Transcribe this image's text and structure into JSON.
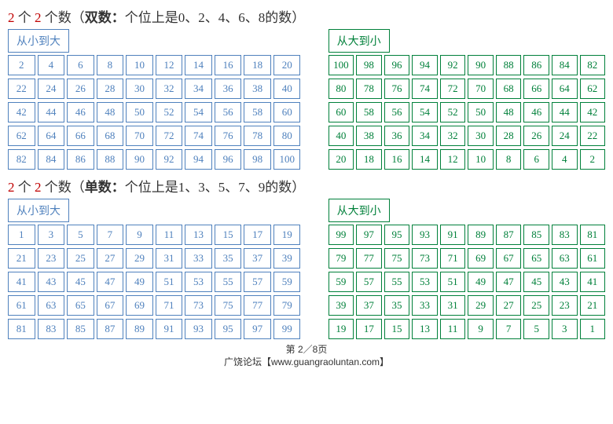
{
  "sections": [
    {
      "title": {
        "prefix_red1": "2",
        "mid1": " 个 ",
        "prefix_red2": "2",
        "mid2": " 个数（",
        "bold": "双数：",
        "rest": "个位上是0、2、4、6、8的数）"
      },
      "left": {
        "header": "从小到大",
        "border": "blue-border",
        "rows": [
          [
            2,
            4,
            6,
            8,
            10,
            12,
            14,
            16,
            18,
            20
          ],
          [
            22,
            24,
            26,
            28,
            30,
            32,
            34,
            36,
            38,
            40
          ],
          [
            42,
            44,
            46,
            48,
            50,
            52,
            54,
            56,
            58,
            60
          ],
          [
            62,
            64,
            66,
            68,
            70,
            72,
            74,
            76,
            78,
            80
          ],
          [
            82,
            84,
            86,
            88,
            90,
            92,
            94,
            96,
            98,
            100
          ]
        ]
      },
      "right": {
        "header": "从大到小",
        "border": "green-border",
        "rows": [
          [
            100,
            98,
            96,
            94,
            92,
            90,
            88,
            86,
            84,
            82
          ],
          [
            80,
            78,
            76,
            74,
            72,
            70,
            68,
            66,
            64,
            62
          ],
          [
            60,
            58,
            56,
            54,
            52,
            50,
            48,
            46,
            44,
            42
          ],
          [
            40,
            38,
            36,
            34,
            32,
            30,
            28,
            26,
            24,
            22
          ],
          [
            20,
            18,
            16,
            14,
            12,
            10,
            8,
            6,
            4,
            2
          ]
        ]
      }
    },
    {
      "title": {
        "prefix_red1": "2",
        "mid1": " 个 ",
        "prefix_red2": "2",
        "mid2": " 个数（",
        "bold": "单数：",
        "rest": "个位上是1、3、5、7、9的数）"
      },
      "left": {
        "header": "从小到大",
        "border": "blue-border",
        "rows": [
          [
            1,
            3,
            5,
            7,
            9,
            11,
            13,
            15,
            17,
            19
          ],
          [
            21,
            23,
            25,
            27,
            29,
            31,
            33,
            35,
            37,
            39
          ],
          [
            41,
            43,
            45,
            47,
            49,
            51,
            53,
            55,
            57,
            59
          ],
          [
            61,
            63,
            65,
            67,
            69,
            71,
            73,
            75,
            77,
            79
          ],
          [
            81,
            83,
            85,
            87,
            89,
            91,
            93,
            95,
            97,
            99
          ]
        ]
      },
      "right": {
        "header": "从大到小",
        "border": "green-border",
        "rows": [
          [
            99,
            97,
            95,
            93,
            91,
            89,
            87,
            85,
            83,
            81
          ],
          [
            79,
            77,
            75,
            73,
            71,
            69,
            67,
            65,
            63,
            61
          ],
          [
            59,
            57,
            55,
            53,
            51,
            49,
            47,
            45,
            43,
            41
          ],
          [
            39,
            37,
            35,
            33,
            31,
            29,
            27,
            25,
            23,
            21
          ],
          [
            19,
            17,
            15,
            13,
            11,
            9,
            7,
            5,
            3,
            1
          ]
        ]
      }
    }
  ],
  "footer": {
    "page": "第 2／8页",
    "site": "广饶论坛【www.guangraoluntan.com】"
  },
  "style": {
    "blue": "#4f81bd",
    "green": "#00803a"
  }
}
